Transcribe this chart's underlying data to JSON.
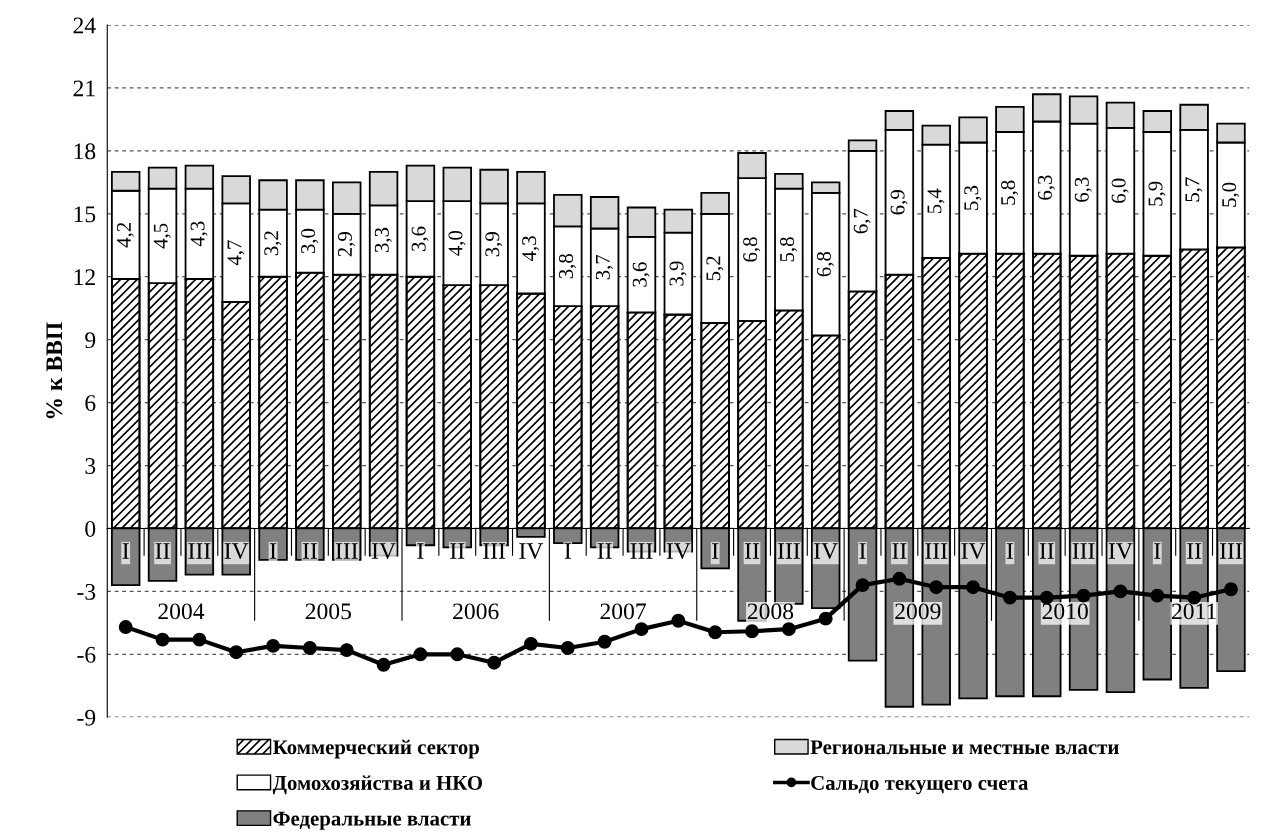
{
  "chart_data": {
    "type": "bar",
    "stacked": true,
    "ylabel": "% к ВВП",
    "categories": [
      "I",
      "II",
      "III",
      "IV",
      "I",
      "II",
      "III",
      "IV",
      "I",
      "II",
      "III",
      "IV",
      "I",
      "II",
      "III",
      "IV",
      "I",
      "II",
      "III",
      "IV",
      "I",
      "II",
      "III",
      "IV",
      "I",
      "II",
      "III",
      "IV",
      "I",
      "II",
      "III"
    ],
    "annotations": [
      "2004",
      "2005",
      "2006",
      "2007",
      "2008",
      "2009",
      "2010",
      "2011"
    ],
    "series": [
      {
        "name": "Коммерческий сектор",
        "color": "#000000",
        "values": [
          11.9,
          11.7,
          11.9,
          10.8,
          12.0,
          12.2,
          12.1,
          12.1,
          12.0,
          11.6,
          11.6,
          11.2,
          10.6,
          10.6,
          10.3,
          10.2,
          9.8,
          9.9,
          10.4,
          9.2,
          11.3,
          12.1,
          12.9,
          13.1,
          13.1,
          13.1,
          13.0,
          13.1,
          13.0,
          13.3,
          13.4
        ]
      },
      {
        "name": "Домохозяйства и НКО",
        "color": "#ffffff",
        "values": [
          4.2,
          4.5,
          4.3,
          4.7,
          3.2,
          3.0,
          2.9,
          3.3,
          3.6,
          4.0,
          3.9,
          4.3,
          3.8,
          3.7,
          3.6,
          3.9,
          5.2,
          6.8,
          5.8,
          6.8,
          6.7,
          6.9,
          5.4,
          5.3,
          5.8,
          6.3,
          6.3,
          6.0,
          5.9,
          5.7,
          5.0
        ],
        "value_labels": [
          "4,2",
          "4,5",
          "4,3",
          "4,7",
          "3,2",
          "3,0",
          "2,9",
          "3,3",
          "3,6",
          "4,0",
          "3,9",
          "4,3",
          "3,8",
          "3,7",
          "3,6",
          "3,9",
          "5,2",
          "6,8",
          "5,8",
          "6,8",
          "6,7",
          "6,9",
          "5,4",
          "5,3",
          "5,8",
          "6,3",
          "6,3",
          "6,0",
          "5,9",
          "5,7",
          "5,0"
        ]
      },
      {
        "name": "Федеральные власти",
        "color": "#808080",
        "values": [
          -2.7,
          -2.5,
          -2.2,
          -2.2,
          -1.5,
          -1.5,
          -1.5,
          -1.3,
          -0.8,
          -0.9,
          -0.8,
          -0.4,
          -0.7,
          -0.9,
          -1.1,
          -1.1,
          -1.9,
          -4.4,
          -3.6,
          -3.8,
          -6.3,
          -8.5,
          -8.4,
          -8.1,
          -8.0,
          -8.0,
          -7.7,
          -7.8,
          -7.2,
          -7.6,
          -6.8
        ]
      },
      {
        "name": "Региональные и местные власти",
        "color": "#d9d9d9",
        "values": [
          0.9,
          1.0,
          1.1,
          1.3,
          1.4,
          1.4,
          1.5,
          1.6,
          1.7,
          1.6,
          1.6,
          1.5,
          1.5,
          1.5,
          1.4,
          1.1,
          1.0,
          1.2,
          0.7,
          0.5,
          0.5,
          0.9,
          0.9,
          1.2,
          1.2,
          1.3,
          1.3,
          1.2,
          1.0,
          1.2,
          0.9
        ]
      },
      {
        "name": "Сальдо текущего счета",
        "type": "line",
        "color": "#000000",
        "marker": "circle",
        "values": [
          -4.7,
          -5.3,
          -5.3,
          -5.9,
          -5.6,
          -5.7,
          -5.8,
          -6.5,
          -6.0,
          -6.0,
          -6.4,
          -5.5,
          -5.7,
          -5.4,
          -4.8,
          -4.4,
          -4.95,
          -4.9,
          -4.8,
          -4.3,
          -2.7,
          -2.4,
          -2.8,
          -2.8,
          -3.3,
          -3.3,
          -3.2,
          -3.0,
          -3.2,
          -3.3,
          -2.9
        ]
      }
    ],
    "ylim": [
      -9,
      24
    ],
    "yticks": [
      -9,
      -6,
      -3,
      0,
      3,
      6,
      9,
      12,
      15,
      18,
      21,
      24
    ],
    "grid": "y",
    "legend": "bottom"
  }
}
